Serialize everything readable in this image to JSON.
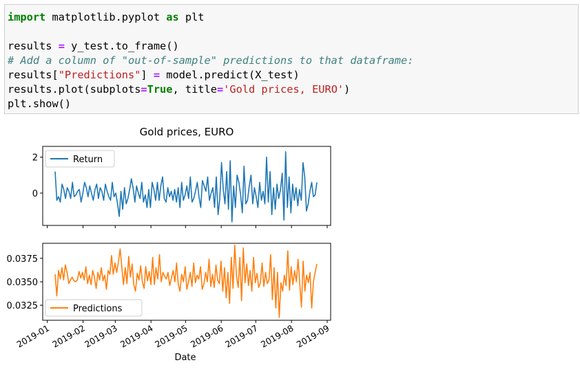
{
  "code_cell": {
    "lines": [
      [
        {
          "t": "import",
          "c": "kw"
        },
        {
          "t": " matplotlib.pyplot ",
          "c": ""
        },
        {
          "t": "as",
          "c": "kw"
        },
        {
          "t": " plt",
          "c": ""
        }
      ],
      [],
      [
        {
          "t": "results ",
          "c": ""
        },
        {
          "t": "=",
          "c": "op"
        },
        {
          "t": " y_test.to_frame()",
          "c": ""
        }
      ],
      [
        {
          "t": "# Add a column of \"out-of-sample\" predictions to that dataframe:",
          "c": "cm"
        }
      ],
      [
        {
          "t": "results[",
          "c": ""
        },
        {
          "t": "\"Predictions\"",
          "c": "str"
        },
        {
          "t": "] ",
          "c": ""
        },
        {
          "t": "=",
          "c": "op"
        },
        {
          "t": " model.predict(X_test)",
          "c": ""
        }
      ],
      [
        {
          "t": "results.plot(subplots",
          "c": ""
        },
        {
          "t": "=",
          "c": "op"
        },
        {
          "t": "True",
          "c": "kw"
        },
        {
          "t": ", title",
          "c": ""
        },
        {
          "t": "=",
          "c": "op"
        },
        {
          "t": "'Gold prices, EURO'",
          "c": "str"
        },
        {
          "t": ")",
          "c": ""
        }
      ],
      [
        {
          "t": "plt.show()",
          "c": ""
        }
      ]
    ]
  },
  "chart_data": {
    "type": "line",
    "title": "Gold prices, EURO",
    "xlabel": "Date",
    "x_ticks": [
      "2019-01",
      "2019-02",
      "2019-03",
      "2019-04",
      "2019-05",
      "2019-06",
      "2019-07",
      "2019-08",
      "2019-09"
    ],
    "x_range": [
      "2018-12-28",
      "2019-09-04"
    ],
    "grid": false,
    "subplots": [
      {
        "name": "Return",
        "color": "#1f77b4",
        "legend_loc": "upper-left",
        "ylim": [
          -1.8,
          2.6
        ],
        "yticks": [
          {
            "v": 0,
            "label": "0"
          },
          {
            "v": 2,
            "label": "2"
          }
        ],
        "values": [
          1.2,
          -0.4,
          -0.2,
          -0.5,
          0.5,
          0.2,
          -0.3,
          0.3,
          0.1,
          -0.3,
          0.6,
          -0.2,
          -0.1,
          0.1,
          0.2,
          -0.5,
          0.0,
          0.6,
          0.3,
          -0.2,
          0.4,
          0.0,
          -0.4,
          0.2,
          0.5,
          -0.3,
          0.3,
          0.1,
          -0.4,
          0.5,
          0.1,
          -0.2,
          -0.4,
          0.6,
          -0.2,
          0.0,
          -0.6,
          -1.3,
          0.1,
          -0.9,
          0.3,
          -0.6,
          -0.3,
          0.2,
          0.8,
          0.3,
          -0.5,
          0.4,
          0.0,
          -0.3,
          0.6,
          -0.5,
          -0.1,
          -0.8,
          0.2,
          -0.8,
          0.6,
          0.2,
          -0.4,
          0.6,
          -0.4,
          0.4,
          0.9,
          -0.3,
          -0.5,
          0.3,
          -0.2,
          0.1,
          -0.4,
          0.2,
          -0.5,
          0.3,
          -0.8,
          0.6,
          -0.4,
          -0.1,
          0.4,
          -0.3,
          0.9,
          -0.5,
          -0.3,
          0.1,
          0.6,
          -0.2,
          -0.8,
          0.7,
          0.4,
          0.1,
          0.9,
          -0.4,
          0.0,
          0.3,
          -0.8,
          0.9,
          -1.2,
          -0.3,
          1.7,
          0.2,
          -0.6,
          1.2,
          -0.9,
          1.8,
          -1.6,
          0.4,
          -0.8,
          1.0,
          0.6,
          -0.1,
          -1.1,
          1.5,
          -0.6,
          -0.4,
          0.4,
          1.0,
          -0.6,
          0.3,
          -0.2,
          -0.8,
          0.6,
          -0.4,
          0.1,
          -0.6,
          2.0,
          -0.5,
          1.2,
          -1.2,
          0.3,
          -0.9,
          0.5,
          -0.3,
          0.2,
          1.1,
          -1.5,
          2.3,
          -0.8,
          0.9,
          -1.1,
          0.5,
          -0.4,
          0.3,
          -0.7,
          0.2,
          -0.4,
          1.7,
          0.9,
          -1.0,
          -0.6,
          0.1,
          0.6,
          -0.2,
          -0.1,
          0.6
        ]
      },
      {
        "name": "Predictions",
        "color": "#ff7f0e",
        "legend_loc": "lower-left",
        "ylim": [
          0.0309,
          0.0391
        ],
        "yticks": [
          {
            "v": 0.0325,
            "label": "0.0325"
          },
          {
            "v": 0.035,
            "label": "0.0350"
          },
          {
            "v": 0.0375,
            "label": "0.0375"
          }
        ],
        "values": [
          0.0358,
          0.0335,
          0.0362,
          0.0353,
          0.0365,
          0.0352,
          0.0368,
          0.036,
          0.0348,
          0.0352,
          0.0355,
          0.0351,
          0.035,
          0.0352,
          0.0361,
          0.0354,
          0.036,
          0.0352,
          0.0366,
          0.0348,
          0.0357,
          0.0347,
          0.0362,
          0.0355,
          0.0343,
          0.036,
          0.0352,
          0.0365,
          0.0351,
          0.0357,
          0.0342,
          0.0362,
          0.0358,
          0.0378,
          0.0358,
          0.037,
          0.036,
          0.0371,
          0.0385,
          0.0365,
          0.0347,
          0.0365,
          0.0348,
          0.0377,
          0.0355,
          0.0369,
          0.0347,
          0.034,
          0.0359,
          0.0352,
          0.0367,
          0.035,
          0.0343,
          0.0366,
          0.0351,
          0.0361,
          0.0347,
          0.0376,
          0.0347,
          0.0365,
          0.0353,
          0.0379,
          0.035,
          0.036,
          0.0356,
          0.0353,
          0.036,
          0.0346,
          0.0354,
          0.0362,
          0.035,
          0.037,
          0.0347,
          0.034,
          0.0358,
          0.035,
          0.0366,
          0.0342,
          0.035,
          0.036,
          0.0345,
          0.037,
          0.0349,
          0.0357,
          0.0353,
          0.0366,
          0.0342,
          0.0348,
          0.036,
          0.035,
          0.0374,
          0.0345,
          0.0358,
          0.0344,
          0.0368,
          0.0352,
          0.0348,
          0.0372,
          0.034,
          0.0365,
          0.0333,
          0.036,
          0.0327,
          0.0376,
          0.0343,
          0.0389,
          0.0356,
          0.0344,
          0.0376,
          0.033,
          0.0386,
          0.0349,
          0.0369,
          0.0346,
          0.0362,
          0.034,
          0.0376,
          0.0349,
          0.0359,
          0.0344,
          0.0349,
          0.037,
          0.0345,
          0.036,
          0.0348,
          0.0352,
          0.0379,
          0.0331,
          0.0365,
          0.0322,
          0.036,
          0.0312,
          0.0349,
          0.034,
          0.0357,
          0.0346,
          0.0383,
          0.0341,
          0.0366,
          0.0347,
          0.0362,
          0.035,
          0.0374,
          0.0348,
          0.0323,
          0.0372,
          0.034,
          0.0357,
          0.0349,
          0.036,
          0.0322,
          0.035,
          0.036,
          0.0369
        ]
      }
    ]
  }
}
